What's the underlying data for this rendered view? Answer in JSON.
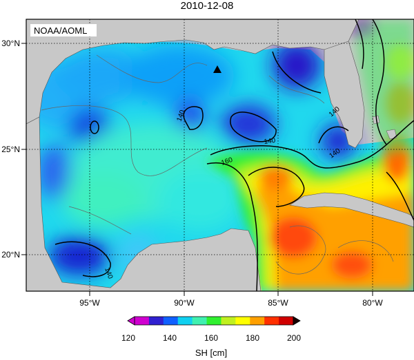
{
  "title": "2010-12-08",
  "credit": "NOAA/AOML",
  "axes": {
    "lon_ticks": [
      "95°W",
      "90°W",
      "85°W",
      "80°W"
    ],
    "lat_ticks": [
      "30°N",
      "25°N",
      "20°N"
    ]
  },
  "contour_labels": [
    "140",
    "140",
    "140",
    "140",
    "160",
    "140"
  ],
  "colorbar": {
    "ticks": [
      "120",
      "140",
      "160",
      "180",
      "200"
    ],
    "label": "SH [cm]",
    "range": [
      120,
      200
    ],
    "colors": [
      "#d000d0",
      "#3020d0",
      "#1060ff",
      "#10d0f0",
      "#40f0b0",
      "#30f030",
      "#c0f020",
      "#ffff00",
      "#ffa000",
      "#ff3000",
      "#d00000"
    ]
  },
  "colors": {
    "land": "#c8c8c8",
    "grid": "#000000"
  }
}
